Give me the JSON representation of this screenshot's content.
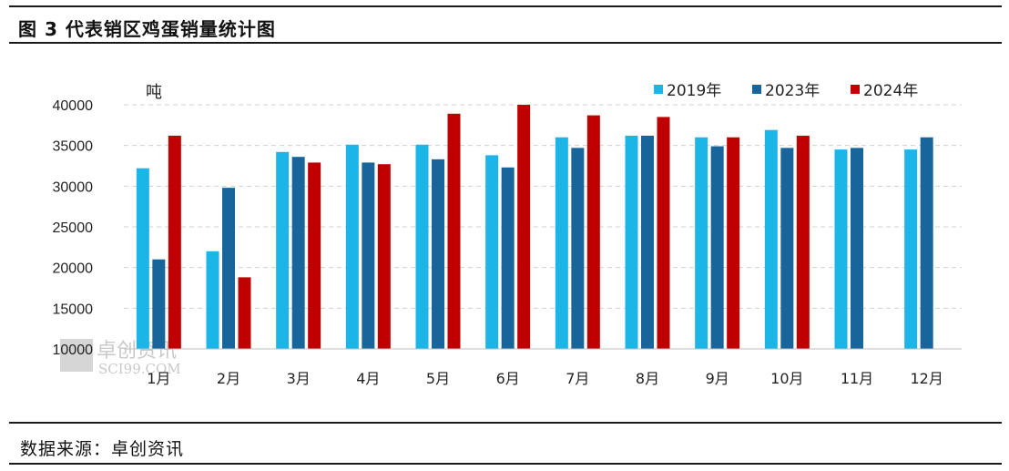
{
  "header": {
    "title": "图 3  代表销区鸡蛋销量统计图"
  },
  "footer": {
    "source": "数据来源：卓创资讯"
  },
  "watermark": {
    "cn": "卓创资讯",
    "en": "SCI99.COM"
  },
  "colors": {
    "s2019": "#1bb5e8",
    "s2023": "#17659a",
    "s2024": "#c00000",
    "grid": "#d0d0d0",
    "axis": "#bfbfbf"
  },
  "chart_data": {
    "type": "bar",
    "unit_label": "吨",
    "ylim": [
      10000,
      40000
    ],
    "yticks": [
      10000,
      15000,
      20000,
      25000,
      30000,
      35000,
      40000
    ],
    "grid": true,
    "legend_position": "top-right",
    "categories": [
      "1月",
      "2月",
      "3月",
      "4月",
      "5月",
      "6月",
      "7月",
      "8月",
      "9月",
      "10月",
      "11月",
      "12月"
    ],
    "series": [
      {
        "name": "2019年",
        "values": [
          32200,
          22000,
          34200,
          35100,
          35100,
          33800,
          36000,
          36200,
          36000,
          36900,
          34500,
          34500
        ]
      },
      {
        "name": "2023年",
        "values": [
          21000,
          29800,
          33600,
          32900,
          33300,
          32300,
          34700,
          36200,
          34900,
          34700,
          34700,
          36000
        ]
      },
      {
        "name": "2024年",
        "values": [
          36200,
          18800,
          32900,
          32700,
          38900,
          40000,
          38700,
          38500,
          36000,
          36200,
          null,
          null
        ]
      }
    ]
  }
}
